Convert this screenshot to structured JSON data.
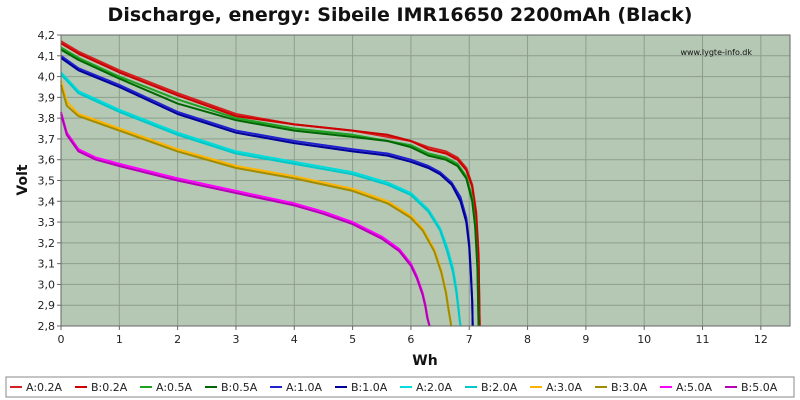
{
  "chart_data": {
    "type": "line",
    "title": "Discharge, energy: Sibeile IMR16650 2200mAh (Black)",
    "xlabel": "Wh",
    "ylabel": "Volt",
    "watermark": "www.lygte-info.dk",
    "xlim": [
      0,
      12.5
    ],
    "ylim": [
      2.8,
      4.2
    ],
    "xticks": [
      0,
      1,
      2,
      3,
      4,
      5,
      6,
      7,
      8,
      9,
      10,
      11,
      12
    ],
    "yticks": [
      2.8,
      2.9,
      3.0,
      3.1,
      3.2,
      3.3,
      3.4,
      3.5,
      3.6,
      3.7,
      3.8,
      3.9,
      4.0,
      4.1,
      4.2
    ],
    "ytick_labels": [
      "2,8",
      "2,9",
      "3,0",
      "3,1",
      "3,2",
      "3,3",
      "3,4",
      "3,5",
      "3,6",
      "3,7",
      "3,8",
      "3,9",
      "4,0",
      "4,1",
      "4,2"
    ],
    "grid": true,
    "legend_position": "bottom",
    "background_color": "#b4c8b4",
    "series": [
      {
        "name": "A:0.2A",
        "color": "#d42020",
        "x": [
          0,
          0.3,
          1,
          2,
          3,
          4,
          5,
          5.6,
          6.0,
          6.3,
          6.6,
          6.8,
          6.95,
          7.05,
          7.12,
          7.16,
          7.17,
          7.18
        ],
        "y": [
          4.17,
          4.12,
          4.03,
          3.92,
          3.82,
          3.77,
          3.74,
          3.71,
          3.69,
          3.66,
          3.64,
          3.61,
          3.56,
          3.48,
          3.35,
          3.15,
          2.95,
          2.8
        ]
      },
      {
        "name": "B:0.2A",
        "color": "#cc0000",
        "x": [
          0,
          0.3,
          1,
          2,
          3,
          4,
          5,
          5.6,
          6.0,
          6.3,
          6.6,
          6.8,
          6.95,
          7.05,
          7.12,
          7.16,
          7.17,
          7.18
        ],
        "y": [
          4.16,
          4.11,
          4.02,
          3.91,
          3.81,
          3.77,
          3.74,
          3.72,
          3.69,
          3.65,
          3.63,
          3.6,
          3.55,
          3.47,
          3.33,
          3.12,
          2.95,
          2.8
        ]
      },
      {
        "name": "A:0.5A",
        "color": "#20a020",
        "x": [
          0,
          0.3,
          1,
          2,
          3,
          4,
          5,
          5.6,
          6.0,
          6.3,
          6.6,
          6.8,
          6.95,
          7.05,
          7.1,
          7.14,
          7.15,
          7.16
        ],
        "y": [
          4.14,
          4.09,
          4.0,
          3.89,
          3.8,
          3.75,
          3.72,
          3.69,
          3.67,
          3.63,
          3.61,
          3.58,
          3.52,
          3.42,
          3.3,
          3.1,
          2.95,
          2.8
        ]
      },
      {
        "name": "B:0.5A",
        "color": "#006600",
        "x": [
          0,
          0.3,
          1,
          2,
          3,
          4,
          5,
          5.6,
          6.0,
          6.3,
          6.6,
          6.8,
          6.95,
          7.05,
          7.1,
          7.14,
          7.15,
          7.16
        ],
        "y": [
          4.13,
          4.08,
          3.99,
          3.87,
          3.79,
          3.74,
          3.71,
          3.69,
          3.66,
          3.62,
          3.6,
          3.57,
          3.51,
          3.4,
          3.28,
          3.08,
          2.95,
          2.8
        ]
      },
      {
        "name": "A:1.0A",
        "color": "#2020d0",
        "x": [
          0,
          0.3,
          1,
          2,
          3,
          4,
          5,
          5.6,
          6.0,
          6.3,
          6.5,
          6.7,
          6.85,
          6.95,
          7.0,
          7.03,
          7.05,
          7.06
        ],
        "y": [
          4.1,
          4.04,
          3.96,
          3.83,
          3.74,
          3.69,
          3.65,
          3.63,
          3.6,
          3.57,
          3.54,
          3.49,
          3.42,
          3.32,
          3.2,
          3.05,
          2.92,
          2.8
        ]
      },
      {
        "name": "B:1.0A",
        "color": "#000099",
        "x": [
          0,
          0.3,
          1,
          2,
          3,
          4,
          5,
          5.6,
          6.0,
          6.3,
          6.5,
          6.7,
          6.85,
          6.95,
          7.0,
          7.03,
          7.05,
          7.06
        ],
        "y": [
          4.09,
          4.03,
          3.95,
          3.82,
          3.73,
          3.68,
          3.64,
          3.62,
          3.59,
          3.56,
          3.53,
          3.48,
          3.4,
          3.3,
          3.18,
          3.03,
          2.92,
          2.8
        ]
      },
      {
        "name": "A:2.0A",
        "color": "#00dcdc",
        "x": [
          0,
          0.3,
          1,
          2,
          3,
          4,
          5,
          5.6,
          6.0,
          6.3,
          6.5,
          6.62,
          6.72,
          6.78,
          6.82,
          6.84,
          6.85
        ],
        "y": [
          4.02,
          3.93,
          3.84,
          3.73,
          3.64,
          3.59,
          3.54,
          3.49,
          3.44,
          3.36,
          3.27,
          3.18,
          3.08,
          2.98,
          2.88,
          2.82,
          2.8
        ]
      },
      {
        "name": "B:2.0A",
        "color": "#00c8c8",
        "x": [
          0,
          0.3,
          1,
          2,
          3,
          4,
          5,
          5.6,
          6.0,
          6.3,
          6.5,
          6.62,
          6.72,
          6.78,
          6.82,
          6.84,
          6.85
        ],
        "y": [
          4.01,
          3.92,
          3.83,
          3.72,
          3.63,
          3.58,
          3.53,
          3.48,
          3.43,
          3.35,
          3.26,
          3.16,
          3.06,
          2.96,
          2.87,
          2.82,
          2.8
        ]
      },
      {
        "name": "A:3.0A",
        "color": "#ffb400",
        "x": [
          0,
          0.1,
          0.3,
          1,
          2,
          3,
          4,
          5,
          5.6,
          6.0,
          6.2,
          6.4,
          6.52,
          6.6,
          6.65,
          6.68,
          6.69
        ],
        "y": [
          3.98,
          3.88,
          3.82,
          3.75,
          3.65,
          3.57,
          3.52,
          3.46,
          3.4,
          3.33,
          3.27,
          3.17,
          3.07,
          2.97,
          2.88,
          2.82,
          2.8
        ]
      },
      {
        "name": "B:3.0A",
        "color": "#a08c00",
        "x": [
          0,
          0.1,
          0.3,
          1,
          2,
          3,
          4,
          5,
          5.6,
          6.0,
          6.2,
          6.4,
          6.52,
          6.6,
          6.65,
          6.68,
          6.69
        ],
        "y": [
          3.96,
          3.86,
          3.81,
          3.74,
          3.64,
          3.56,
          3.51,
          3.45,
          3.39,
          3.32,
          3.26,
          3.16,
          3.06,
          2.96,
          2.87,
          2.82,
          2.8
        ]
      },
      {
        "name": "A:5.0A",
        "color": "#ff00ff",
        "x": [
          0,
          0.1,
          0.3,
          0.6,
          1,
          2,
          3,
          4,
          4.5,
          5,
          5.5,
          5.8,
          6.0,
          6.1,
          6.2,
          6.25,
          6.28,
          6.3,
          6.32
        ],
        "y": [
          3.83,
          3.73,
          3.65,
          3.61,
          3.58,
          3.51,
          3.45,
          3.39,
          3.35,
          3.3,
          3.23,
          3.17,
          3.1,
          3.04,
          2.96,
          2.9,
          2.85,
          2.82,
          2.8
        ]
      },
      {
        "name": "B:5.0A",
        "color": "#b400b4",
        "x": [
          0,
          0.1,
          0.3,
          0.6,
          1,
          2,
          3,
          4,
          4.5,
          5,
          5.5,
          5.8,
          6.0,
          6.1,
          6.2,
          6.25,
          6.28,
          6.3,
          6.32
        ],
        "y": [
          3.82,
          3.72,
          3.64,
          3.6,
          3.57,
          3.5,
          3.44,
          3.38,
          3.34,
          3.29,
          3.22,
          3.16,
          3.09,
          3.03,
          2.95,
          2.89,
          2.84,
          2.82,
          2.8
        ]
      }
    ]
  }
}
